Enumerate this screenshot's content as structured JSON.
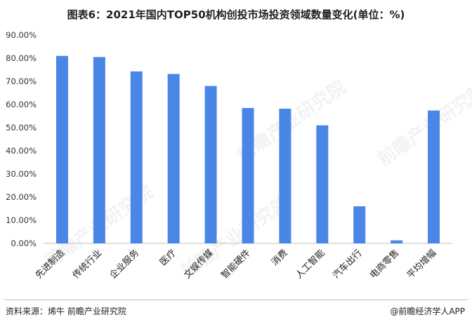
{
  "title": "图表6：2021年国内TOP50机构创投市场投资领域数量变化(单位：%)",
  "chart_data": {
    "type": "bar",
    "title": "图表6：2021年国内TOP50机构创投市场投资领域数量变化(单位：%)",
    "categories": [
      "先进制造",
      "传统行业",
      "企业服务",
      "医疗",
      "文娱传媒",
      "智能硬件",
      "消费",
      "人工智能",
      "汽车出行",
      "电商零售",
      "平均增幅"
    ],
    "values": [
      81.0,
      80.5,
      74.3,
      73.2,
      68.0,
      58.5,
      58.2,
      51.0,
      16.0,
      1.3,
      57.4
    ],
    "yticks": [
      "0.00%",
      "10.00%",
      "20.00%",
      "30.00%",
      "40.00%",
      "50.00%",
      "60.00%",
      "70.00%",
      "80.00%",
      "90.00%"
    ],
    "ylim": [
      0,
      90
    ],
    "xlabel": "",
    "ylabel": "",
    "grid": false,
    "bar_color": "#4a86e8"
  },
  "watermark": "前瞻产业研究院",
  "footer": {
    "source": "资料来源：烯牛 前瞻产业研究院",
    "credit": "@前瞻经济学人APP"
  }
}
